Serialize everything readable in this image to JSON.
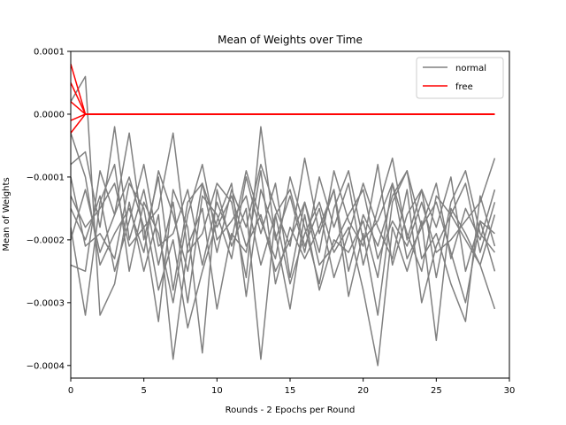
{
  "chart_data": {
    "type": "line",
    "title": "Mean of Weights over Time",
    "xlabel": "Rounds - 2 Epochs per Round",
    "ylabel": "Mean of Weights",
    "xlim": [
      0,
      30
    ],
    "ylim": [
      -0.00042,
      0.0001
    ],
    "xticks": [
      0,
      5,
      10,
      15,
      20,
      25,
      30
    ],
    "xtick_labels": [
      "0",
      "5",
      "10",
      "15",
      "20",
      "25",
      "30"
    ],
    "yticks": [
      0.0001,
      0.0,
      -0.0001,
      -0.0002,
      -0.0003,
      -0.0004
    ],
    "ytick_labels": [
      "0.0001",
      "0.0000",
      "−0.0001",
      "−0.0002",
      "−0.0003",
      "−0.0004"
    ],
    "grid": false,
    "legend_position": "top-right",
    "legend": [
      {
        "label": "normal",
        "color": "#808080"
      },
      {
        "label": "free",
        "color": "#ff0000"
      }
    ],
    "x": [
      0,
      1,
      2,
      3,
      4,
      5,
      6,
      7,
      8,
      9,
      10,
      11,
      12,
      13,
      14,
      15,
      16,
      17,
      18,
      19,
      20,
      21,
      22,
      23,
      24,
      25,
      26,
      27,
      28,
      29
    ],
    "series": [
      {
        "group": "normal",
        "color": "#808080",
        "values": [
          -0.00024,
          -0.00025,
          -9e-05,
          -0.00016,
          -3e-05,
          -0.0002,
          -0.0001,
          -0.00028,
          -0.00014,
          -0.00011,
          -0.00022,
          -0.00012,
          -0.00018,
          -8e-05,
          -0.00015,
          -0.00021,
          -7e-05,
          -0.00019,
          -0.00012,
          -0.00025,
          -0.00016,
          -0.00021,
          -0.00013,
          -9e-05,
          -0.00018,
          -0.00011,
          -0.00023,
          -0.00015,
          -0.0002,
          -0.00012
        ]
      },
      {
        "group": "normal",
        "color": "#808080",
        "values": [
          -8e-05,
          -6e-05,
          -0.00018,
          -2e-05,
          -0.0002,
          -0.00012,
          -0.00024,
          -0.00014,
          -0.0003,
          -0.00013,
          -0.00016,
          -0.00023,
          -0.0001,
          -0.00019,
          -0.00011,
          -0.00026,
          -0.00014,
          -0.00022,
          -9e-05,
          -0.00017,
          -0.00021,
          -8e-05,
          -0.00024,
          -0.00016,
          -0.00012,
          -0.00026,
          -0.00014,
          -9e-05,
          -0.00019,
          -0.00022
        ]
      },
      {
        "group": "normal",
        "color": "#808080",
        "values": [
          -0.0002,
          -0.00012,
          -0.00022,
          -0.00016,
          -0.0001,
          -0.00018,
          -0.00015,
          -3e-05,
          -0.00022,
          -0.00019,
          -0.00011,
          -0.00014,
          -0.00026,
          -2e-05,
          -0.0002,
          -0.00013,
          -0.00022,
          -0.0001,
          -0.00018,
          -0.00011,
          -0.00024,
          -0.00015,
          -7e-05,
          -0.0002,
          -0.00012,
          -0.00018,
          -0.0001,
          -0.00025,
          -0.00017,
          -0.00019
        ]
      },
      {
        "group": "normal",
        "color": "#808080",
        "values": [
          -0.00015,
          -0.0002,
          -0.00013,
          -0.00025,
          -0.00017,
          -8e-05,
          -0.00021,
          -0.00019,
          -0.00012,
          -0.00024,
          -0.00014,
          -0.0002,
          -9e-05,
          -0.00017,
          -0.00023,
          -0.0001,
          -0.00018,
          -0.00027,
          -0.00015,
          -9e-05,
          -0.0002,
          -0.00017,
          -0.00011,
          -0.00019,
          -0.00025,
          -0.00013,
          -0.00016,
          -0.0002,
          -0.00024,
          -0.00016
        ]
      },
      {
        "group": "normal",
        "color": "#808080",
        "values": [
          -0.00018,
          -0.00032,
          -0.00014,
          -8e-05,
          -0.00025,
          -0.00014,
          -0.00019,
          -0.0003,
          -0.00016,
          -8e-05,
          -0.0002,
          -0.00017,
          -0.00013,
          -0.00024,
          -0.00016,
          -0.00012,
          -0.00021,
          -0.00015,
          -0.00026,
          -0.00019,
          -0.00011,
          -0.00018,
          -0.00023,
          -0.00012,
          -0.0003,
          -0.00021,
          -0.00016,
          -0.00011,
          -0.00022,
          -0.00014
        ]
      },
      {
        "group": "normal",
        "color": "#808080",
        "values": [
          -3e-05,
          -0.0001,
          -0.00024,
          -0.00019,
          -0.00015,
          -0.00022,
          -9e-05,
          -0.00016,
          -0.00025,
          -0.00011,
          -0.00018,
          -0.00013,
          -0.00021,
          -0.00016,
          -0.00025,
          -0.0002,
          -0.00014,
          -0.00024,
          -0.00021,
          -0.00016,
          -0.00012,
          -0.00023,
          -0.00017,
          -0.00021,
          -0.00014,
          -0.00022,
          -0.0002,
          -0.00017,
          -0.00014,
          -7e-05
        ]
      },
      {
        "group": "normal",
        "color": "#808080",
        "values": [
          -0.00013,
          -0.00018,
          -0.00015,
          -0.00011,
          -0.00021,
          -0.00018,
          -0.00033,
          -0.00012,
          -0.00018,
          -0.00038,
          -0.00012,
          -0.00021,
          -0.00015,
          -0.00039,
          -0.00016,
          -0.00027,
          -0.00019,
          -0.00014,
          -0.00022,
          -0.00018,
          -0.00028,
          -0.0004,
          -0.00018,
          -0.00025,
          -0.00017,
          -0.00036,
          -0.00015,
          -0.00019,
          -0.00024,
          -0.00031
        ]
      },
      {
        "group": "normal",
        "color": "#808080",
        "values": [
          2e-05,
          6e-05,
          -0.00032,
          -0.00027,
          -0.00014,
          -0.00025,
          -0.00016,
          -0.00039,
          -0.00021,
          -0.00015,
          -0.00031,
          -0.00019,
          -0.00022,
          -9e-05,
          -0.00027,
          -0.00018,
          -0.00023,
          -0.00018,
          -0.00012,
          -0.00029,
          -0.00019,
          -0.00032,
          -0.00014,
          -9e-05,
          -0.00023,
          -0.00019,
          -0.00027,
          -0.00033,
          -0.00013,
          -0.00021
        ]
      },
      {
        "group": "normal",
        "color": "#808080",
        "values": [
          -0.0001,
          -0.00021,
          -0.00019,
          -0.00023,
          -0.00011,
          -0.00015,
          -0.00028,
          -0.0002,
          -0.00034,
          -0.00025,
          -0.00017,
          -0.00011,
          -0.00029,
          -0.00012,
          -0.00019,
          -0.00031,
          -0.00016,
          -0.00028,
          -0.0002,
          -0.00022,
          -0.00017,
          -0.00026,
          -0.00011,
          -0.00023,
          -0.00018,
          -0.00014,
          -0.00022,
          -0.0003,
          -0.00017,
          -0.00025
        ]
      },
      {
        "group": "free",
        "color": "#ff0000",
        "values": [
          8e-05,
          0,
          0,
          0,
          0,
          0,
          0,
          0,
          0,
          0,
          0,
          0,
          0,
          0,
          0,
          0,
          0,
          0,
          0,
          0,
          0,
          0,
          0,
          0,
          0,
          0,
          0,
          0,
          0,
          0
        ]
      },
      {
        "group": "free",
        "color": "#ff0000",
        "values": [
          5e-05,
          0,
          0,
          0,
          0,
          0,
          0,
          0,
          0,
          0,
          0,
          0,
          0,
          0,
          0,
          0,
          0,
          0,
          0,
          0,
          0,
          0,
          0,
          0,
          0,
          0,
          0,
          0,
          0,
          0
        ]
      },
      {
        "group": "free",
        "color": "#ff0000",
        "values": [
          2e-05,
          0,
          0,
          0,
          0,
          0,
          0,
          0,
          0,
          0,
          0,
          0,
          0,
          0,
          0,
          0,
          0,
          0,
          0,
          0,
          0,
          0,
          0,
          0,
          0,
          0,
          0,
          0,
          0,
          0
        ]
      },
      {
        "group": "free",
        "color": "#ff0000",
        "values": [
          -1e-05,
          0,
          0,
          0,
          0,
          0,
          0,
          0,
          0,
          0,
          0,
          0,
          0,
          0,
          0,
          0,
          0,
          0,
          0,
          0,
          0,
          0,
          0,
          0,
          0,
          0,
          0,
          0,
          0,
          0
        ]
      },
      {
        "group": "free",
        "color": "#ff0000",
        "values": [
          -3e-05,
          0,
          0,
          0,
          0,
          0,
          0,
          0,
          0,
          0,
          0,
          0,
          0,
          0,
          0,
          0,
          0,
          0,
          0,
          0,
          0,
          0,
          0,
          0,
          0,
          0,
          0,
          0,
          0,
          0
        ]
      }
    ]
  }
}
